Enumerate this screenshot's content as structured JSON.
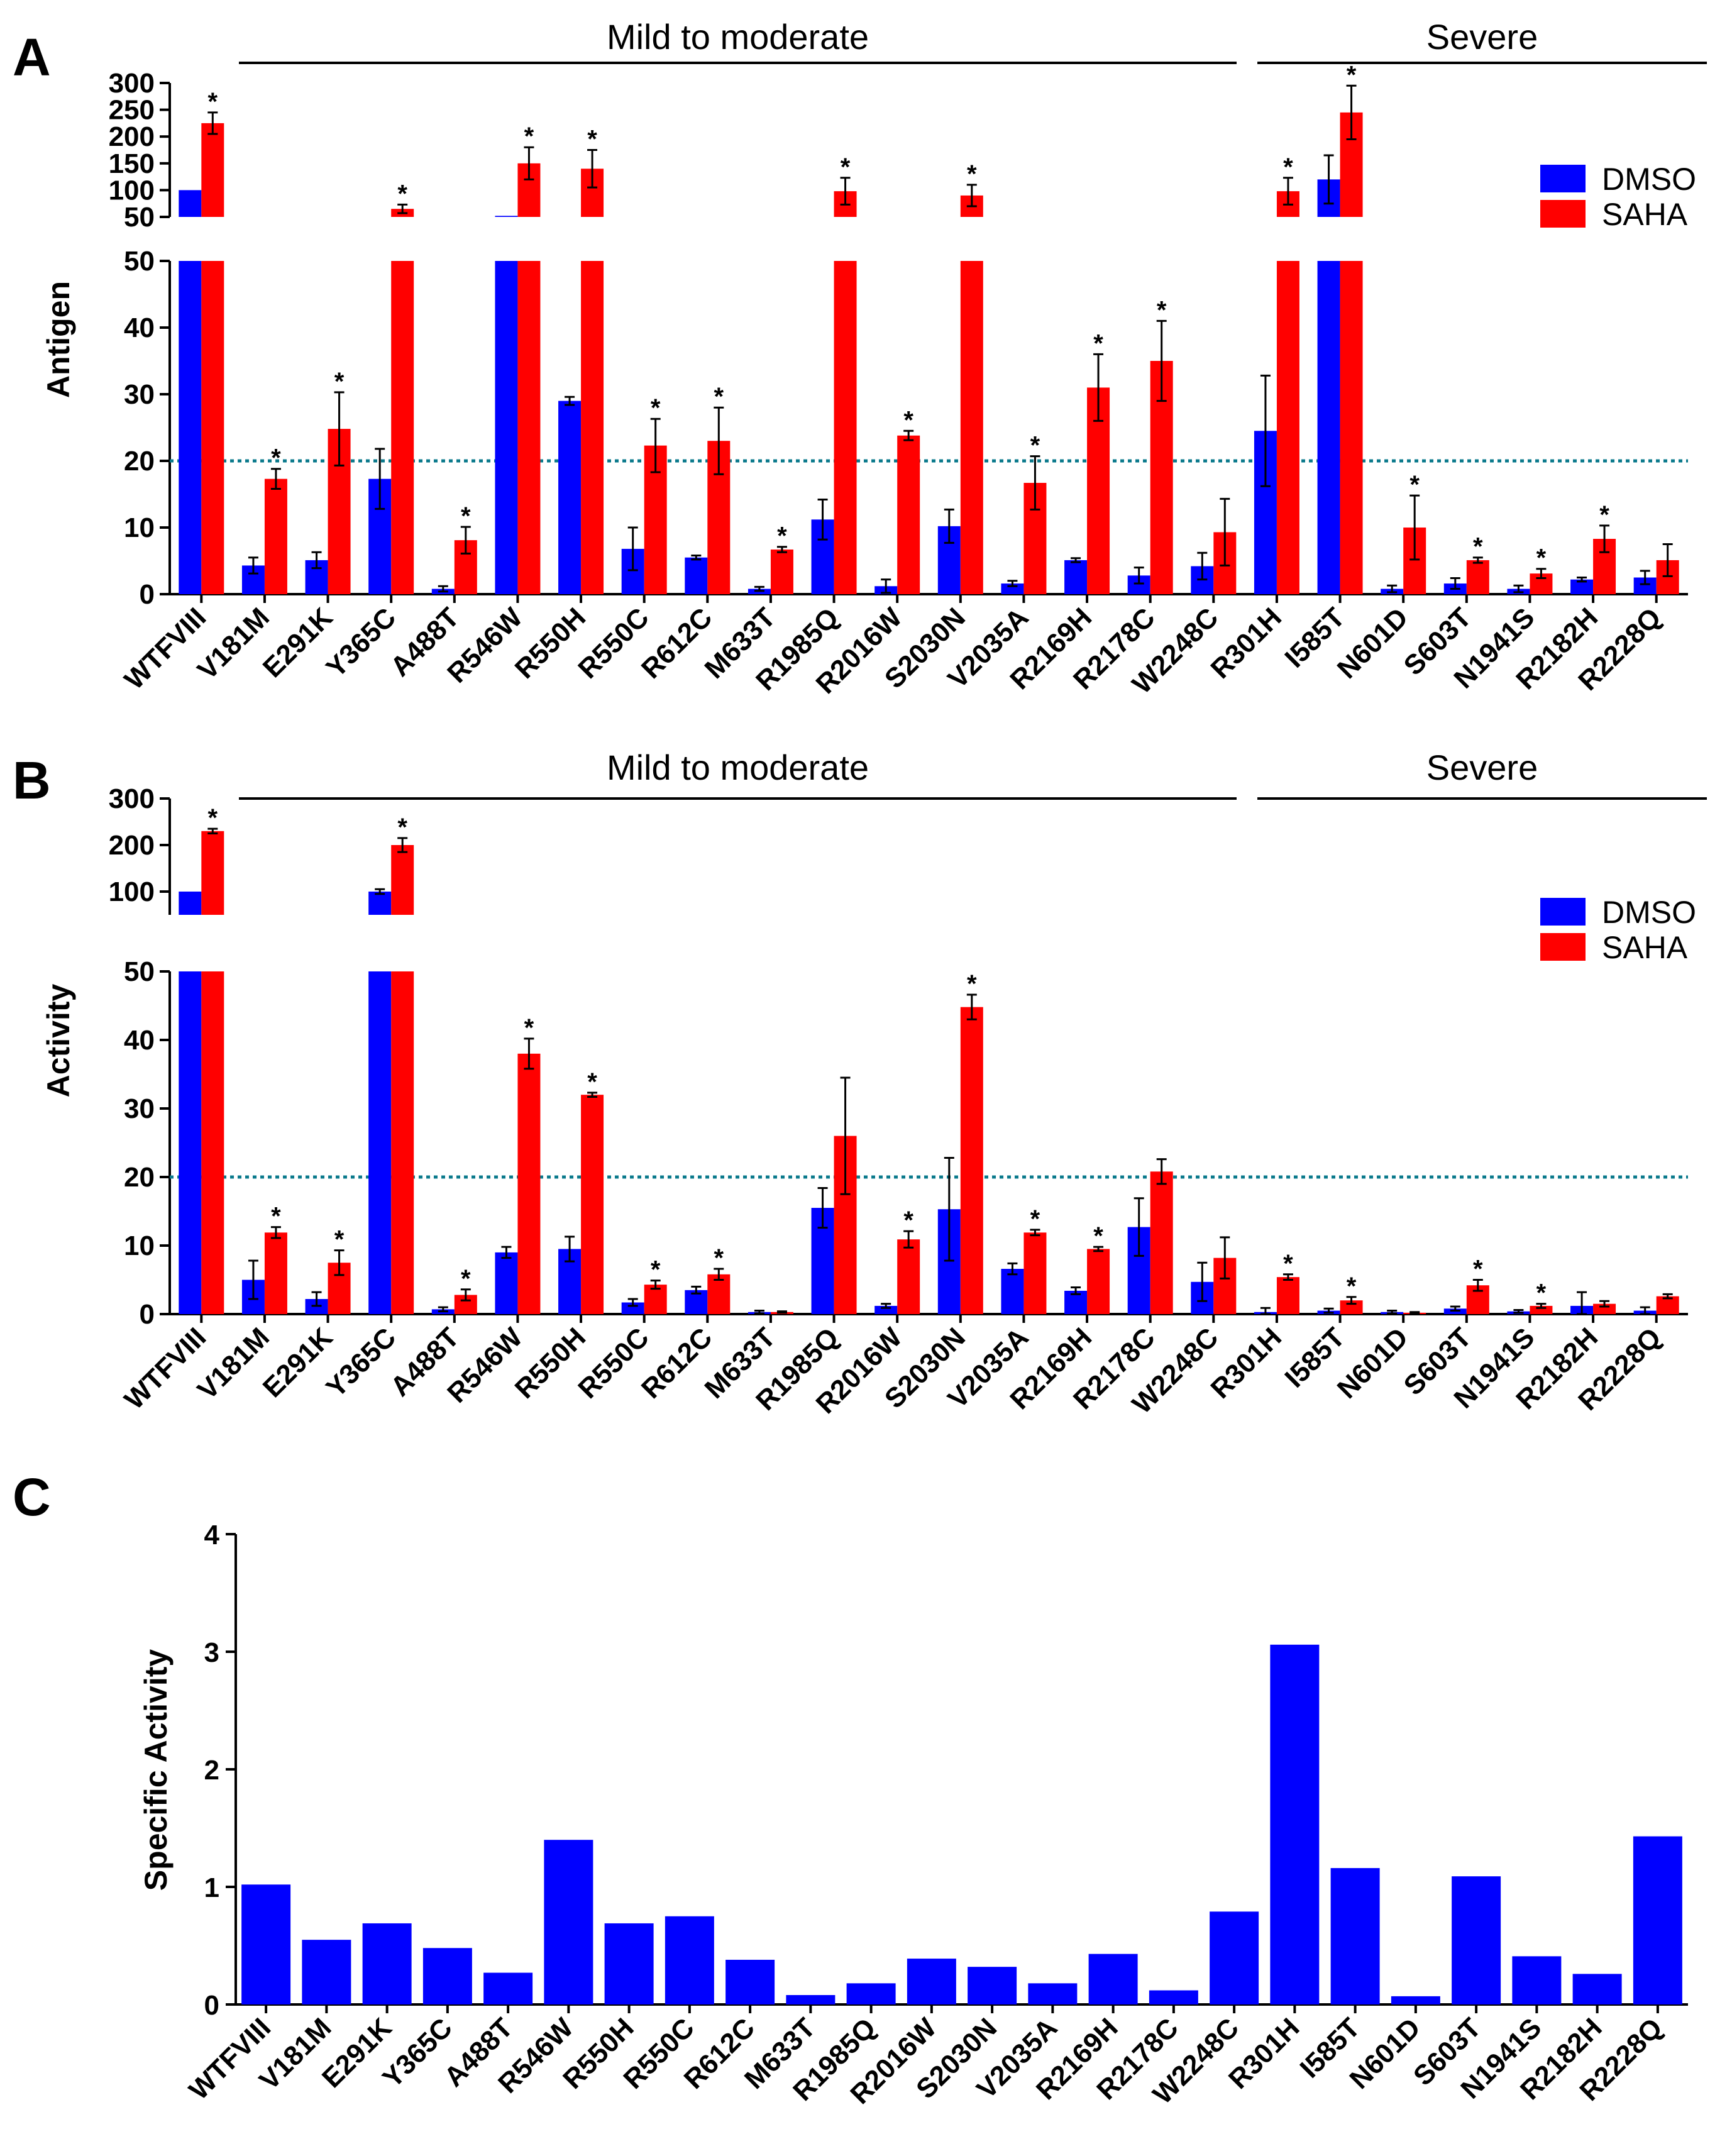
{
  "chart_data": [
    {
      "panel": "A",
      "type": "bar",
      "ylabel": "Antigen",
      "ylim_lower": [
        0,
        50
      ],
      "ylim_upper": [
        50,
        300
      ],
      "lower_ticks": [
        "0",
        "10",
        "20",
        "30",
        "40",
        "50"
      ],
      "upper_ticks": [
        "50",
        "100",
        "150",
        "200",
        "250",
        "300"
      ],
      "reference_line": 20,
      "groups": [
        {
          "label": "Mild to moderate",
          "from": "V181M",
          "to": "W2248C"
        },
        {
          "label": "Severe",
          "from": "R301H",
          "to": "R2228Q"
        }
      ],
      "categories": [
        "WTFVIII",
        "V181M",
        "E291K",
        "Y365C",
        "A488T",
        "R546W",
        "R550H",
        "R550C",
        "R612C",
        "M633T",
        "R1985Q",
        "R2016W",
        "S2030N",
        "V2035A",
        "R2169H",
        "R2178C",
        "W2248C",
        "R301H",
        "I585T",
        "N601D",
        "S603T",
        "N1941S",
        "R2182H",
        "R2228Q"
      ],
      "series": [
        {
          "name": "DMSO",
          "color": "#0000ff",
          "values": [
            100,
            4.3,
            5.1,
            17.3,
            0.8,
            52,
            29,
            6.8,
            5.5,
            0.8,
            11.2,
            1.2,
            10.2,
            1.6,
            5.1,
            2.8,
            4.2,
            24.5,
            120,
            0.8,
            1.6,
            0.8,
            2.2,
            2.5
          ],
          "errors": [
            0,
            1.2,
            1.2,
            4.5,
            0.4,
            0,
            0.6,
            3.2,
            0.3,
            0.3,
            3.0,
            1.0,
            2.5,
            0.4,
            0.3,
            1.2,
            2.0,
            8.3,
            45,
            0.5,
            0.8,
            0.5,
            0.3,
            1.0
          ]
        },
        {
          "name": "SAHA",
          "color": "#ff0000",
          "values": [
            225,
            17.3,
            24.8,
            65,
            8.1,
            150,
            140,
            22.3,
            23,
            6.7,
            98,
            23.8,
            90,
            16.7,
            31,
            35,
            9.3,
            98,
            245,
            10,
            5.1,
            3.1,
            8.3,
            5.1
          ],
          "errors": [
            20,
            1.5,
            5.5,
            8,
            2,
            30,
            35,
            4,
            5,
            0.4,
            25,
            0.7,
            20,
            4,
            5,
            6,
            5,
            25,
            50,
            4.8,
            0.4,
            0.7,
            2,
            2.4
          ],
          "significant": [
            true,
            true,
            true,
            true,
            true,
            true,
            true,
            true,
            true,
            true,
            true,
            true,
            true,
            true,
            true,
            true,
            false,
            true,
            true,
            true,
            true,
            true,
            true,
            false
          ]
        }
      ]
    },
    {
      "panel": "B",
      "type": "bar",
      "ylabel": "Activity",
      "ylim_lower": [
        0,
        50
      ],
      "ylim_upper": [
        50,
        300
      ],
      "lower_ticks": [
        "0",
        "10",
        "20",
        "30",
        "40",
        "50"
      ],
      "upper_ticks": [
        "100",
        "200",
        "300"
      ],
      "reference_line": 20,
      "groups": [
        {
          "label": "Mild to moderate",
          "from": "V181M",
          "to": "W2248C"
        },
        {
          "label": "Severe",
          "from": "R301H",
          "to": "R2228Q"
        }
      ],
      "categories": [
        "WTFVIII",
        "V181M",
        "E291K",
        "Y365C",
        "A488T",
        "R546W",
        "R550H",
        "R550C",
        "R612C",
        "M633T",
        "R1985Q",
        "R2016W",
        "S2030N",
        "V2035A",
        "R2169H",
        "R2178C",
        "W2248C",
        "R301H",
        "I585T",
        "N601D",
        "S603T",
        "N1941S",
        "R2182H",
        "R2228Q"
      ],
      "series": [
        {
          "name": "DMSO",
          "color": "#0000ff",
          "values": [
            100,
            5,
            2.2,
            100,
            0.7,
            9,
            9.5,
            1.7,
            3.5,
            0.3,
            15.5,
            1.2,
            15.3,
            6.6,
            3.4,
            12.7,
            4.7,
            0.3,
            0.5,
            0.3,
            0.8,
            0.4,
            1.2,
            0.5
          ],
          "errors": [
            0,
            2.8,
            1,
            5,
            0.3,
            0.8,
            1.8,
            0.5,
            0.5,
            0.2,
            2.9,
            0.3,
            7.5,
            0.8,
            0.5,
            4.2,
            2.8,
            0.6,
            0.3,
            0.2,
            0.3,
            0.2,
            2,
            0.5
          ],
          "significant": [
            false,
            false,
            false,
            false,
            false,
            false,
            false,
            false,
            false,
            false,
            false,
            false,
            false,
            false,
            false,
            false,
            false,
            false,
            false,
            false,
            false,
            false,
            false,
            false
          ]
        },
        {
          "name": "SAHA",
          "color": "#ff0000",
          "values": [
            230,
            11.9,
            7.5,
            200,
            2.8,
            38,
            32,
            4.3,
            5.8,
            0.3,
            26,
            10.9,
            44.8,
            11.9,
            9.5,
            20.8,
            8.2,
            5.4,
            2,
            0.2,
            4.2,
            1.2,
            1.5,
            2.6
          ],
          "errors": [
            5,
            0.8,
            1.8,
            15,
            0.8,
            2.2,
            0.3,
            0.6,
            0.8,
            0.1,
            8.5,
            1.2,
            1.8,
            0.4,
            0.3,
            1.8,
            3,
            0.4,
            0.5,
            0.1,
            0.8,
            0.3,
            0.4,
            0.3
          ],
          "significant": [
            true,
            true,
            true,
            true,
            true,
            true,
            true,
            true,
            true,
            false,
            false,
            true,
            true,
            true,
            true,
            false,
            false,
            true,
            true,
            false,
            true,
            true,
            false,
            false
          ]
        }
      ]
    },
    {
      "panel": "C",
      "type": "bar",
      "ylabel": "Specific Activity",
      "ylim": [
        0,
        4
      ],
      "ticks": [
        "0",
        "1",
        "2",
        "3",
        "4"
      ],
      "categories": [
        "WTFVIII",
        "V181M",
        "E291K",
        "Y365C",
        "A488T",
        "R546W",
        "R550H",
        "R550C",
        "R612C",
        "M633T",
        "R1985Q",
        "R2016W",
        "S2030N",
        "V2035A",
        "R2169H",
        "R2178C",
        "W2248C",
        "R301H",
        "I585T",
        "N601D",
        "S603T",
        "N1941S",
        "R2182H",
        "R2228Q"
      ],
      "series": [
        {
          "name": "Specific Activity",
          "color": "#0000ff",
          "values": [
            1.02,
            0.55,
            0.69,
            0.48,
            0.27,
            1.4,
            0.69,
            0.75,
            0.38,
            0.08,
            0.18,
            0.39,
            0.32,
            0.18,
            0.43,
            0.12,
            0.79,
            3.06,
            1.16,
            0.07,
            1.09,
            0.41,
            0.26,
            1.43
          ]
        }
      ]
    }
  ],
  "labels": {
    "panel_a": "A",
    "panel_b": "B",
    "panel_c": "C",
    "legend_dmso": "DMSO",
    "legend_saha": "SAHA",
    "star": "*"
  }
}
